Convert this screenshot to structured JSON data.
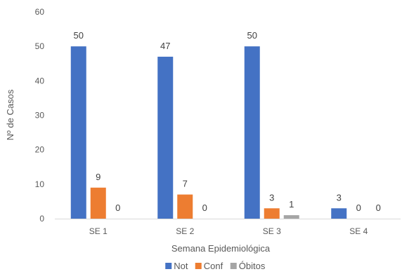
{
  "chart_data": {
    "type": "bar",
    "categories": [
      "SE 1",
      "SE 2",
      "SE 3",
      "SE 4"
    ],
    "series": [
      {
        "name": "Not",
        "values": [
          50,
          47,
          50,
          3
        ],
        "color": "#4472C4"
      },
      {
        "name": "Conf",
        "values": [
          9,
          7,
          3,
          0
        ],
        "color": "#ED7D31"
      },
      {
        "name": "Óbitos",
        "values": [
          0,
          0,
          1,
          0
        ],
        "color": "#A5A5A5"
      }
    ],
    "xlabel": "Semana Epidemiológica",
    "ylabel": "Nº de Casos",
    "ylim": [
      0,
      60
    ],
    "yticks": [
      0,
      10,
      20,
      30,
      40,
      50,
      60
    ],
    "grid": false,
    "legend_position": "bottom"
  }
}
